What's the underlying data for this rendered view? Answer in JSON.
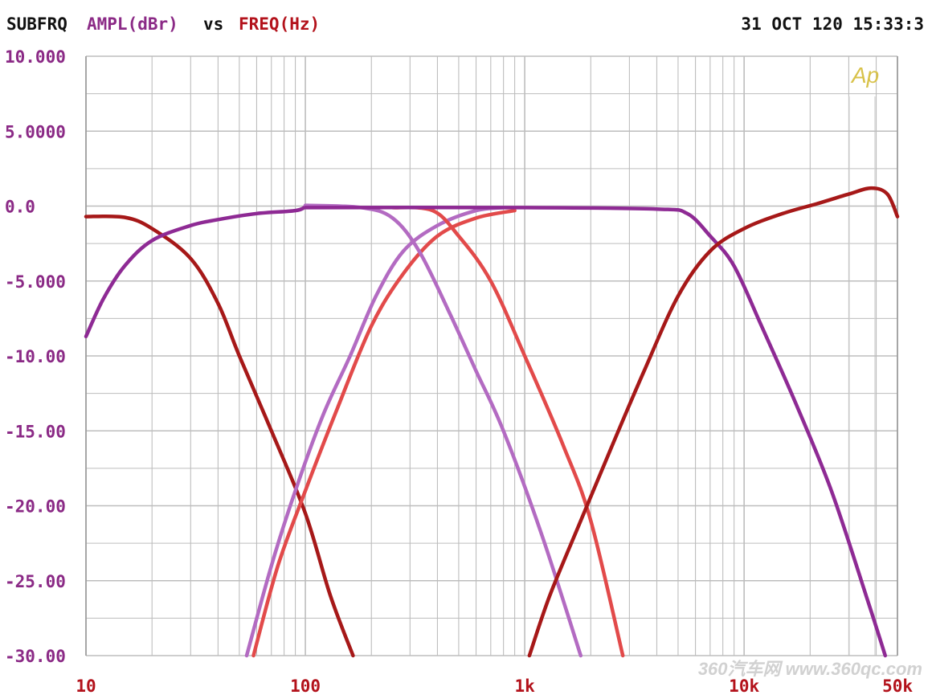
{
  "header": {
    "meter": "SUBFRQ",
    "y_quantity": "AMPL(dBr)",
    "versus": "vs",
    "x_quantity": "FREQ(Hz)",
    "timestamp": "31 OCT 120 15:33:3"
  },
  "logo": "Ap",
  "watermark": "360汽车网 www.360qc.com",
  "colors": {
    "purple": "#8e2a94",
    "lavender": "#b36bc2",
    "darkred": "#a61818",
    "red": "#e24a4a",
    "grid": "#bdbdbd",
    "ylabel": "#8b2a86",
    "xlabel": "#b3121b",
    "logo": "#d8c24a"
  },
  "chart_data": {
    "type": "line",
    "x_scale": "log",
    "xlim": [
      10,
      50000
    ],
    "ylim": [
      -30,
      10
    ],
    "grid": true,
    "yticks": [
      {
        "value": 10,
        "label": "10.000"
      },
      {
        "value": 5,
        "label": "5.0000"
      },
      {
        "value": 0,
        "label": "0.0"
      },
      {
        "value": -5,
        "label": "-5.000"
      },
      {
        "value": -10,
        "label": "-10.00"
      },
      {
        "value": -15,
        "label": "-15.00"
      },
      {
        "value": -20,
        "label": "-20.00"
      },
      {
        "value": -25,
        "label": "-25.00"
      },
      {
        "value": -30,
        "label": "-30.00"
      }
    ],
    "xticks": [
      {
        "value": 10,
        "label": "10"
      },
      {
        "value": 100,
        "label": "100"
      },
      {
        "value": 1000,
        "label": "1k"
      },
      {
        "value": 10000,
        "label": "10k"
      },
      {
        "value": 50000,
        "label": "50k"
      }
    ],
    "series": [
      {
        "color": "darkred",
        "points": [
          [
            10,
            -0.7
          ],
          [
            15,
            -0.75
          ],
          [
            20,
            -1.5
          ],
          [
            30,
            -3.5
          ],
          [
            40,
            -6.5
          ],
          [
            50,
            -10
          ],
          [
            70,
            -15
          ],
          [
            100,
            -20.5
          ],
          [
            130,
            -26
          ],
          [
            165,
            -30
          ]
        ]
      },
      {
        "color": "purple",
        "points": [
          [
            10,
            -8.7
          ],
          [
            12,
            -6.2
          ],
          [
            15,
            -4.0
          ],
          [
            20,
            -2.3
          ],
          [
            30,
            -1.3
          ],
          [
            40,
            -0.9
          ],
          [
            60,
            -0.5
          ],
          [
            90,
            -0.3
          ],
          [
            100,
            -0.05
          ]
        ]
      },
      {
        "color": "lavender",
        "points": [
          [
            54,
            -30
          ],
          [
            70,
            -24
          ],
          [
            90,
            -19
          ],
          [
            120,
            -14
          ],
          [
            160,
            -10
          ],
          [
            210,
            -6
          ],
          [
            280,
            -3
          ],
          [
            400,
            -1.3
          ],
          [
            600,
            -0.3
          ],
          [
            800,
            -0.1
          ]
        ]
      },
      {
        "color": "red",
        "points": [
          [
            58,
            -30
          ],
          [
            75,
            -24
          ],
          [
            100,
            -19
          ],
          [
            140,
            -13.5
          ],
          [
            200,
            -8
          ],
          [
            280,
            -4.5
          ],
          [
            400,
            -2
          ],
          [
            600,
            -0.8
          ],
          [
            900,
            -0.3
          ]
        ]
      },
      {
        "color": "lavender",
        "points": [
          [
            100,
            0.05
          ],
          [
            180,
            -0.1
          ],
          [
            250,
            -0.8
          ],
          [
            330,
            -3
          ],
          [
            450,
            -7
          ],
          [
            600,
            -11
          ],
          [
            800,
            -15
          ],
          [
            1200,
            -22
          ],
          [
            1800,
            -30
          ]
        ]
      },
      {
        "color": "red",
        "points": [
          [
            250,
            -0.1
          ],
          [
            380,
            -0.3
          ],
          [
            500,
            -2
          ],
          [
            700,
            -5
          ],
          [
            1000,
            -10
          ],
          [
            1500,
            -16
          ],
          [
            2000,
            -21
          ],
          [
            2800,
            -30
          ]
        ]
      },
      {
        "color": "purple",
        "points": [
          [
            100,
            -0.1
          ],
          [
            1000,
            -0.1
          ],
          [
            4000,
            -0.2
          ],
          [
            5500,
            -0.5
          ],
          [
            7000,
            -2
          ],
          [
            9000,
            -4
          ],
          [
            12000,
            -8
          ],
          [
            17000,
            -13
          ],
          [
            25000,
            -19
          ],
          [
            36000,
            -26
          ],
          [
            44000,
            -30
          ]
        ]
      },
      {
        "color": "darkred",
        "points": [
          [
            1050,
            -30
          ],
          [
            1300,
            -26
          ],
          [
            1800,
            -21
          ],
          [
            2500,
            -16
          ],
          [
            3500,
            -11
          ],
          [
            5000,
            -6
          ],
          [
            7000,
            -3
          ],
          [
            10000,
            -1.5
          ],
          [
            15000,
            -0.5
          ],
          [
            22000,
            0.2
          ],
          [
            30000,
            0.8
          ],
          [
            38000,
            1.2
          ],
          [
            45000,
            0.8
          ],
          [
            50000,
            -0.7
          ]
        ]
      }
    ]
  }
}
